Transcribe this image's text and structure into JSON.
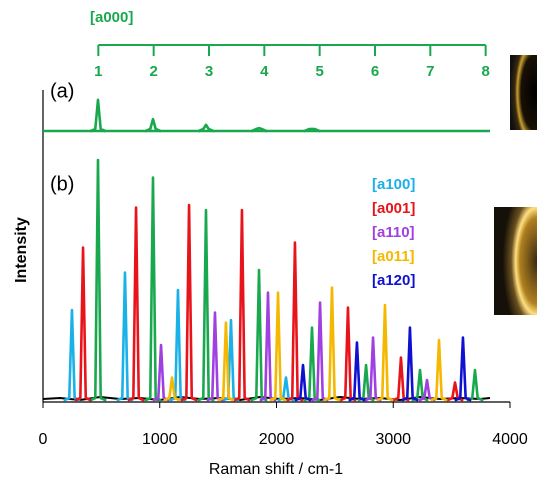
{
  "chart_data": [
    {
      "type": "line",
      "annotation": "(a)",
      "xlim": [
        0,
        4000
      ],
      "ylim": [
        0,
        1
      ],
      "x2lim": [
        0,
        8.44
      ],
      "x2ticks": [
        1,
        2,
        3,
        4,
        5,
        6,
        7,
        8
      ],
      "x2label": "[a000]",
      "x2color": "#1aa84f",
      "series": [
        {
          "color": "#1aa84f",
          "x": [
            471,
            942,
            1396,
            1850,
            2304
          ],
          "values": [
            0.76,
            0.29,
            0.15,
            0.07,
            0.05
          ]
        }
      ]
    },
    {
      "type": "line",
      "annotation": "(b)",
      "xlim": [
        0,
        4000
      ],
      "ylim": [
        0,
        1
      ],
      "xticks": [
        0,
        1000,
        2000,
        3000,
        4000
      ],
      "xlabel": "Raman shift / cm-1",
      "ylabel": "Intensity",
      "series": [
        {
          "color": "#1aa84f",
          "x": [
            471,
            942,
            1396,
            1850,
            2304,
            2767,
            3229,
            3700
          ],
          "values": [
            0.96,
            0.89,
            0.76,
            0.52,
            0.29,
            0.14,
            0.12,
            0.12
          ]
        },
        {
          "name": "[a100]",
          "color": "#1ab0e8",
          "x": [
            248,
            702,
            1156,
            1610,
            2081
          ],
          "values": [
            0.36,
            0.51,
            0.44,
            0.32,
            0.09
          ]
        },
        {
          "name": "[a001]",
          "color": "#e8141c",
          "x": [
            343,
            797,
            1251,
            1704,
            2158,
            2612,
            3066,
            3529
          ],
          "values": [
            0.61,
            0.77,
            0.78,
            0.76,
            0.63,
            0.37,
            0.17,
            0.07
          ]
        },
        {
          "name": "[a110]",
          "color": "#a040e0",
          "x": [
            1011,
            1473,
            1927,
            2373,
            2827,
            3289
          ],
          "values": [
            0.22,
            0.35,
            0.43,
            0.39,
            0.25,
            0.08
          ]
        },
        {
          "name": "[a011]",
          "color": "#f5b800",
          "x": [
            1105,
            1567,
            2013,
            2475,
            2929,
            3392
          ],
          "values": [
            0.09,
            0.31,
            0.43,
            0.45,
            0.38,
            0.24
          ]
        },
        {
          "name": "[a120]",
          "color": "#1010d0",
          "x": [
            2227,
            2689,
            3143,
            3597
          ],
          "values": [
            0.14,
            0.23,
            0.29,
            0.25
          ]
        }
      ]
    }
  ]
}
